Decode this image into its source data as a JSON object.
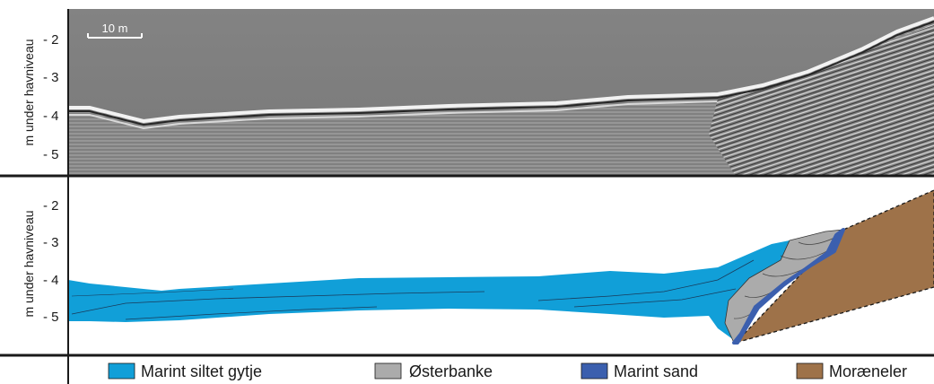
{
  "colors": {
    "marint_siltet_gytje": "#119fd8",
    "osterbanke": "#ababab",
    "marint_sand": "#3b5fae",
    "moraeneler": "#9e7249",
    "seismic_background": "#8a8a8a",
    "water_column": "#7f7f7f"
  },
  "top_panel": {
    "y_axis_label": "m under havniveau",
    "y_ticks": [
      "- 2",
      "- 3",
      "- 4",
      "- 5"
    ],
    "scale_bar_label": "10 m"
  },
  "bottom_panel": {
    "y_axis_label": "m under havniveau",
    "y_ticks": [
      "- 2",
      "- 3",
      "- 4",
      "- 5"
    ]
  },
  "legend": [
    {
      "label": "Marint siltet gytje",
      "color": "#119fd8"
    },
    {
      "label": "Østerbanke",
      "color": "#ababab"
    },
    {
      "label": "Marint sand",
      "color": "#3b5fae"
    },
    {
      "label": "Moræneler",
      "color": "#9e7249"
    }
  ]
}
